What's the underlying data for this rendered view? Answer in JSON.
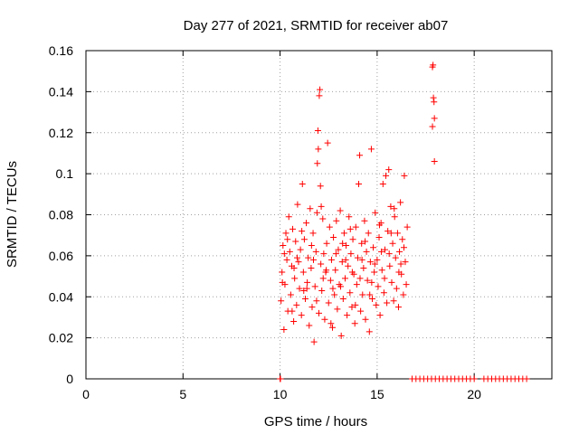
{
  "chart_data": {
    "type": "scatter",
    "title": "Day 277 of 2021, SRMTID for receiver ab07",
    "xlabel": "GPS time / hours",
    "ylabel": "SRMTID / TECUs",
    "xlim": [
      0,
      24
    ],
    "ylim": [
      0,
      0.16
    ],
    "grid": true,
    "marker": "+",
    "color": "#ff0000",
    "xticks": [
      0,
      5,
      10,
      15,
      20
    ],
    "xtick_labels": [
      "0",
      "5",
      "10",
      "15",
      "20"
    ],
    "yticks": [
      0,
      0.02,
      0.04,
      0.06,
      0.08,
      0.1,
      0.12,
      0.14,
      0.16
    ],
    "ytick_labels": [
      "0",
      "0.02",
      "0.04",
      "0.06",
      "0.08",
      "0.1",
      "0.12",
      "0.14",
      "0.16"
    ],
    "series": [
      {
        "name": "SRMTID",
        "points": [
          [
            10.0,
            0.0
          ],
          [
            10.02,
            0.0
          ],
          [
            10.05,
            0.038
          ],
          [
            10.1,
            0.052
          ],
          [
            10.15,
            0.065
          ],
          [
            10.2,
            0.024
          ],
          [
            10.25,
            0.046
          ],
          [
            10.3,
            0.071
          ],
          [
            10.35,
            0.058
          ],
          [
            10.4,
            0.033
          ],
          [
            10.45,
            0.079
          ],
          [
            10.5,
            0.062
          ],
          [
            10.55,
            0.041
          ],
          [
            10.6,
            0.055
          ],
          [
            10.65,
            0.073
          ],
          [
            10.7,
            0.028
          ],
          [
            10.75,
            0.049
          ],
          [
            10.8,
            0.067
          ],
          [
            10.85,
            0.036
          ],
          [
            10.9,
            0.085
          ],
          [
            10.95,
            0.057
          ],
          [
            11.0,
            0.044
          ],
          [
            11.05,
            0.063
          ],
          [
            11.1,
            0.031
          ],
          [
            11.15,
            0.095
          ],
          [
            11.2,
            0.052
          ],
          [
            11.25,
            0.068
          ],
          [
            11.3,
            0.039
          ],
          [
            11.35,
            0.076
          ],
          [
            11.4,
            0.047
          ],
          [
            11.45,
            0.059
          ],
          [
            11.5,
            0.026
          ],
          [
            11.55,
            0.083
          ],
          [
            11.6,
            0.054
          ],
          [
            11.65,
            0.035
          ],
          [
            11.7,
            0.071
          ],
          [
            11.75,
            0.018
          ],
          [
            11.8,
            0.045
          ],
          [
            11.85,
            0.062
          ],
          [
            11.9,
            0.081
          ],
          [
            11.92,
            0.105
          ],
          [
            11.95,
            0.121
          ],
          [
            11.97,
            0.112
          ],
          [
            12.0,
            0.032
          ],
          [
            12.02,
            0.138
          ],
          [
            12.05,
            0.141
          ],
          [
            12.08,
            0.094
          ],
          [
            12.1,
            0.056
          ],
          [
            12.15,
            0.043
          ],
          [
            12.2,
            0.078
          ],
          [
            12.25,
            0.061
          ],
          [
            12.3,
            0.029
          ],
          [
            12.35,
            0.052
          ],
          [
            12.4,
            0.066
          ],
          [
            12.45,
            0.115
          ],
          [
            12.5,
            0.037
          ],
          [
            12.55,
            0.074
          ],
          [
            12.6,
            0.048
          ],
          [
            12.65,
            0.058
          ],
          [
            12.7,
            0.025
          ],
          [
            12.75,
            0.069
          ],
          [
            12.8,
            0.041
          ],
          [
            12.85,
            0.053
          ],
          [
            12.9,
            0.077
          ],
          [
            12.95,
            0.034
          ],
          [
            13.0,
            0.063
          ],
          [
            13.05,
            0.046
          ],
          [
            13.1,
            0.082
          ],
          [
            13.15,
            0.021
          ],
          [
            13.2,
            0.057
          ],
          [
            13.25,
            0.039
          ],
          [
            13.3,
            0.071
          ],
          [
            13.35,
            0.049
          ],
          [
            13.4,
            0.065
          ],
          [
            13.45,
            0.031
          ],
          [
            13.5,
            0.055
          ],
          [
            13.55,
            0.079
          ],
          [
            13.6,
            0.042
          ],
          [
            13.65,
            0.061
          ],
          [
            13.7,
            0.035
          ],
          [
            13.75,
            0.068
          ],
          [
            13.8,
            0.051
          ],
          [
            13.85,
            0.027
          ],
          [
            13.9,
            0.074
          ],
          [
            13.95,
            0.046
          ],
          [
            14.0,
            0.059
          ],
          [
            14.05,
            0.095
          ],
          [
            14.1,
            0.109
          ],
          [
            14.15,
            0.033
          ],
          [
            14.2,
            0.066
          ],
          [
            14.25,
            0.041
          ],
          [
            14.3,
            0.054
          ],
          [
            14.35,
            0.077
          ],
          [
            14.4,
            0.029
          ],
          [
            14.45,
            0.062
          ],
          [
            14.5,
            0.048
          ],
          [
            14.55,
            0.071
          ],
          [
            14.6,
            0.023
          ],
          [
            14.65,
            0.057
          ],
          [
            14.7,
            0.112
          ],
          [
            14.75,
            0.039
          ],
          [
            14.8,
            0.064
          ],
          [
            14.85,
            0.052
          ],
          [
            14.9,
            0.081
          ],
          [
            14.95,
            0.036
          ],
          [
            15.0,
            0.058
          ],
          [
            15.05,
            0.045
          ],
          [
            15.1,
            0.069
          ],
          [
            15.15,
            0.031
          ],
          [
            15.2,
            0.076
          ],
          [
            15.25,
            0.053
          ],
          [
            15.3,
            0.095
          ],
          [
            15.35,
            0.042
          ],
          [
            15.4,
            0.063
          ],
          [
            15.45,
            0.099
          ],
          [
            15.5,
            0.037
          ],
          [
            15.55,
            0.072
          ],
          [
            15.6,
            0.102
          ],
          [
            15.65,
            0.055
          ],
          [
            15.7,
            0.084
          ],
          [
            15.75,
            0.047
          ],
          [
            15.8,
            0.066
          ],
          [
            15.85,
            0.038
          ],
          [
            15.9,
            0.079
          ],
          [
            15.95,
            0.059
          ],
          [
            16.0,
            0.044
          ],
          [
            16.05,
            0.071
          ],
          [
            16.1,
            0.035
          ],
          [
            16.15,
            0.062
          ],
          [
            16.2,
            0.086
          ],
          [
            16.25,
            0.051
          ],
          [
            16.3,
            0.068
          ],
          [
            16.35,
            0.041
          ],
          [
            16.4,
            0.099
          ],
          [
            16.45,
            0.057
          ],
          [
            16.5,
            0.046
          ],
          [
            16.55,
            0.074
          ],
          [
            10.12,
            0.047
          ],
          [
            10.38,
            0.068
          ],
          [
            10.62,
            0.033
          ],
          [
            10.88,
            0.059
          ],
          [
            11.12,
            0.072
          ],
          [
            11.38,
            0.044
          ],
          [
            11.62,
            0.065
          ],
          [
            11.88,
            0.038
          ],
          [
            12.12,
            0.084
          ],
          [
            12.38,
            0.053
          ],
          [
            12.62,
            0.027
          ],
          [
            12.88,
            0.061
          ],
          [
            13.12,
            0.045
          ],
          [
            13.38,
            0.058
          ],
          [
            13.62,
            0.073
          ],
          [
            13.88,
            0.036
          ],
          [
            14.12,
            0.049
          ],
          [
            14.38,
            0.067
          ],
          [
            14.62,
            0.041
          ],
          [
            14.88,
            0.056
          ],
          [
            15.12,
            0.075
          ],
          [
            15.38,
            0.049
          ],
          [
            15.62,
            0.061
          ],
          [
            15.88,
            0.083
          ],
          [
            16.12,
            0.052
          ],
          [
            16.38,
            0.064
          ],
          [
            10.22,
            0.061
          ],
          [
            10.72,
            0.054
          ],
          [
            11.22,
            0.043
          ],
          [
            11.72,
            0.058
          ],
          [
            12.22,
            0.049
          ],
          [
            12.72,
            0.044
          ],
          [
            13.22,
            0.066
          ],
          [
            13.72,
            0.052
          ],
          [
            14.22,
            0.058
          ],
          [
            14.72,
            0.047
          ],
          [
            15.22,
            0.062
          ],
          [
            15.72,
            0.071
          ],
          [
            16.22,
            0.056
          ],
          [
            17.85,
            0.152
          ],
          [
            17.88,
            0.153
          ],
          [
            17.9,
            0.137
          ],
          [
            17.93,
            0.135
          ],
          [
            17.95,
            0.127
          ],
          [
            17.85,
            0.123
          ],
          [
            17.95,
            0.106
          ],
          [
            16.8,
            0.0
          ],
          [
            17.0,
            0.0
          ],
          [
            17.2,
            0.0
          ],
          [
            17.4,
            0.0
          ],
          [
            17.6,
            0.0
          ],
          [
            17.8,
            0.0
          ],
          [
            18.0,
            0.0
          ],
          [
            18.2,
            0.0
          ],
          [
            18.4,
            0.0
          ],
          [
            18.6,
            0.0
          ],
          [
            18.8,
            0.0
          ],
          [
            19.0,
            0.0
          ],
          [
            19.2,
            0.0
          ],
          [
            19.4,
            0.0
          ],
          [
            19.6,
            0.0
          ],
          [
            19.8,
            0.0
          ],
          [
            20.0,
            0.0
          ],
          [
            20.5,
            0.0
          ],
          [
            20.7,
            0.0
          ],
          [
            20.9,
            0.0
          ],
          [
            21.1,
            0.0
          ],
          [
            21.3,
            0.0
          ],
          [
            21.5,
            0.0
          ],
          [
            21.7,
            0.0
          ],
          [
            21.9,
            0.0
          ],
          [
            22.1,
            0.0
          ],
          [
            22.3,
            0.0
          ],
          [
            22.5,
            0.0
          ],
          [
            22.7,
            0.0
          ]
        ]
      }
    ]
  }
}
